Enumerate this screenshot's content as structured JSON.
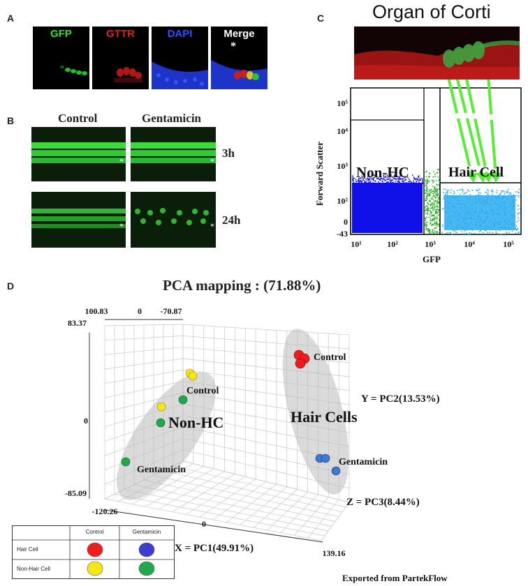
{
  "panel_a": {
    "letter": "A",
    "tiles": [
      {
        "label": "GFP",
        "color": "#2ee02e"
      },
      {
        "label": "GTTR",
        "color": "#e02020"
      },
      {
        "label": "DAPI",
        "color": "#3050ff"
      },
      {
        "label": "Merge",
        "color": "#ffffff"
      }
    ],
    "asterisk": "*"
  },
  "panel_b": {
    "letter": "B",
    "col_labels": [
      "Control",
      "Gentamicin"
    ],
    "row_labels": [
      "3h",
      "24h"
    ],
    "marker": "*"
  },
  "panel_c": {
    "letter": "C",
    "title": "Organ of Corti",
    "y_label": "Forward Scatter",
    "x_label": "GFP",
    "y_ticks": [
      "10⁵",
      "10⁴",
      "10³",
      "10²",
      "0",
      "-43"
    ],
    "x_ticks": [
      "10¹",
      "10²",
      "10³",
      "10⁴",
      "10⁵"
    ],
    "gate_labels": [
      "Non-HC",
      "Hair Cell"
    ],
    "colors": {
      "non_hc": "#1010e8",
      "mid": "#22b022",
      "hair_cell": "#29aaf0",
      "arrow": "#55ee33"
    }
  },
  "panel_d": {
    "letter": "D",
    "title": "PCA mapping : (71.88%)",
    "axis_x_label": "X = PC1(49.91%)",
    "axis_y_label": "Y = PC2(13.53%)",
    "axis_z_label": "Z = PC3(8.44%)",
    "top_ticks": [
      "100.83",
      "0",
      "-70.87"
    ],
    "y_ticks": [
      "83.37",
      "0",
      "-85.09"
    ],
    "x_ticks": [
      "-120.26",
      "0",
      "139.16"
    ],
    "cluster_labels": [
      "Non-HC",
      "Hair Cells"
    ],
    "point_labels": [
      "Control",
      "Gentamicin",
      "Control",
      "Gentamicin"
    ],
    "legend": {
      "col_headers": [
        "Control",
        "Gentamicin"
      ],
      "row_labels": [
        "Hair Cell",
        "Non-Hair Cell"
      ],
      "colors": {
        "hc_control": "#ee1c1c",
        "hc_gent": "#3d3dd0",
        "nhc_control": "#f5e614",
        "nhc_gent": "#22a84a"
      }
    },
    "footer": "Exported from PartekFlow"
  }
}
